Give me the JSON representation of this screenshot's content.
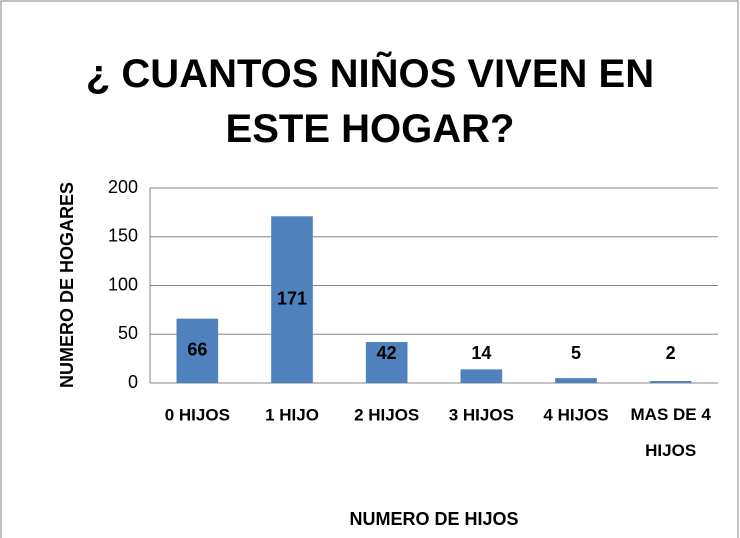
{
  "chart_data": {
    "type": "bar",
    "title": "¿ CUANTOS NIÑOS VIVEN EN ESTE HOGAR?",
    "x_label": "NUMERO DE HIJOS",
    "y_label": "NUMERO DE HOGARES",
    "categories": [
      "0 HIJOS",
      "1 HIJO",
      "2 HIJOS",
      "3 HIJOS",
      "4 HIJOS",
      "MAS DE 4 HIJOS"
    ],
    "values": [
      66,
      171,
      42,
      14,
      5,
      2
    ],
    "color": "#4f81bd",
    "ylim": [
      0,
      200
    ],
    "yticks": [
      0,
      50,
      100,
      150,
      200
    ],
    "grid": true
  }
}
